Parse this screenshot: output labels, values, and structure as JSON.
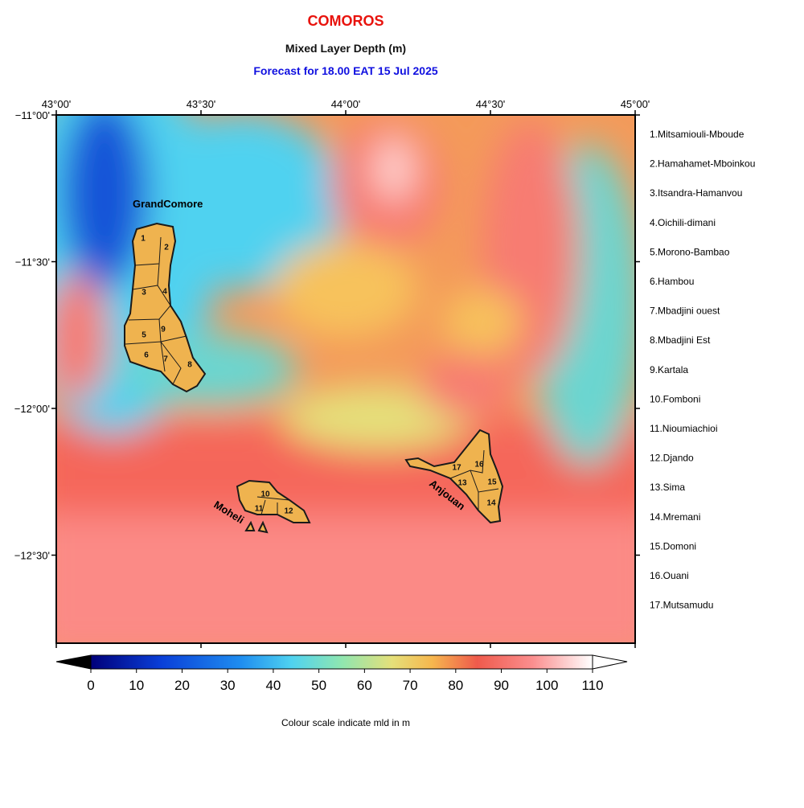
{
  "header": {
    "title": "COMOROS",
    "subtitle": "Mixed Layer Depth (m)",
    "forecast": "Forecast for  18.00 EAT 15 Jul 2025"
  },
  "map": {
    "xlim": [
      43,
      45
    ],
    "ylim": [
      -12.8,
      -11
    ],
    "xticks": [
      {
        "value": 43,
        "label": "43°00'"
      },
      {
        "value": 43.5,
        "label": "43°30'"
      },
      {
        "value": 44,
        "label": "44°00'"
      },
      {
        "value": 44.5,
        "label": "44°30'"
      },
      {
        "value": 45,
        "label": "45°00'"
      }
    ],
    "yticks": [
      {
        "value": -11,
        "label": "−11°00'"
      },
      {
        "value": -11.5,
        "label": "−11°30'"
      },
      {
        "value": -12,
        "label": "−12°00'"
      },
      {
        "value": -12.5,
        "label": "−12°30'"
      }
    ],
    "islands": [
      "GrandComore",
      "Moheli",
      "Anjouan"
    ],
    "region_numbers": [
      "1",
      "2",
      "3",
      "4",
      "5",
      "6",
      "7",
      "8",
      "9",
      "10",
      "11",
      "12",
      "13",
      "14",
      "15",
      "16",
      "17"
    ]
  },
  "legend": [
    "1.Mitsamiouli-Mboude",
    "2.Hamahamet-Mboinkou",
    "3.Itsandra-Hamanvou",
    "4.Oichili-dimani",
    "5.Morono-Bambao",
    "6.Hambou",
    "7.Mbadjini ouest",
    "8.Mbadjini Est",
    "9.Kartala",
    "10.Fomboni",
    "11.Nioumiachioi",
    "12.Djando",
    "13.Sima",
    "14.Mremani",
    "15.Domoni",
    "16.Ouani",
    "17.Mutsamudu"
  ],
  "colorbar": {
    "lim": [
      0,
      110
    ],
    "ticks": [
      0,
      10,
      20,
      30,
      40,
      50,
      60,
      70,
      80,
      90,
      100,
      110
    ],
    "caption": "Colour scale indicate mld in m"
  }
}
